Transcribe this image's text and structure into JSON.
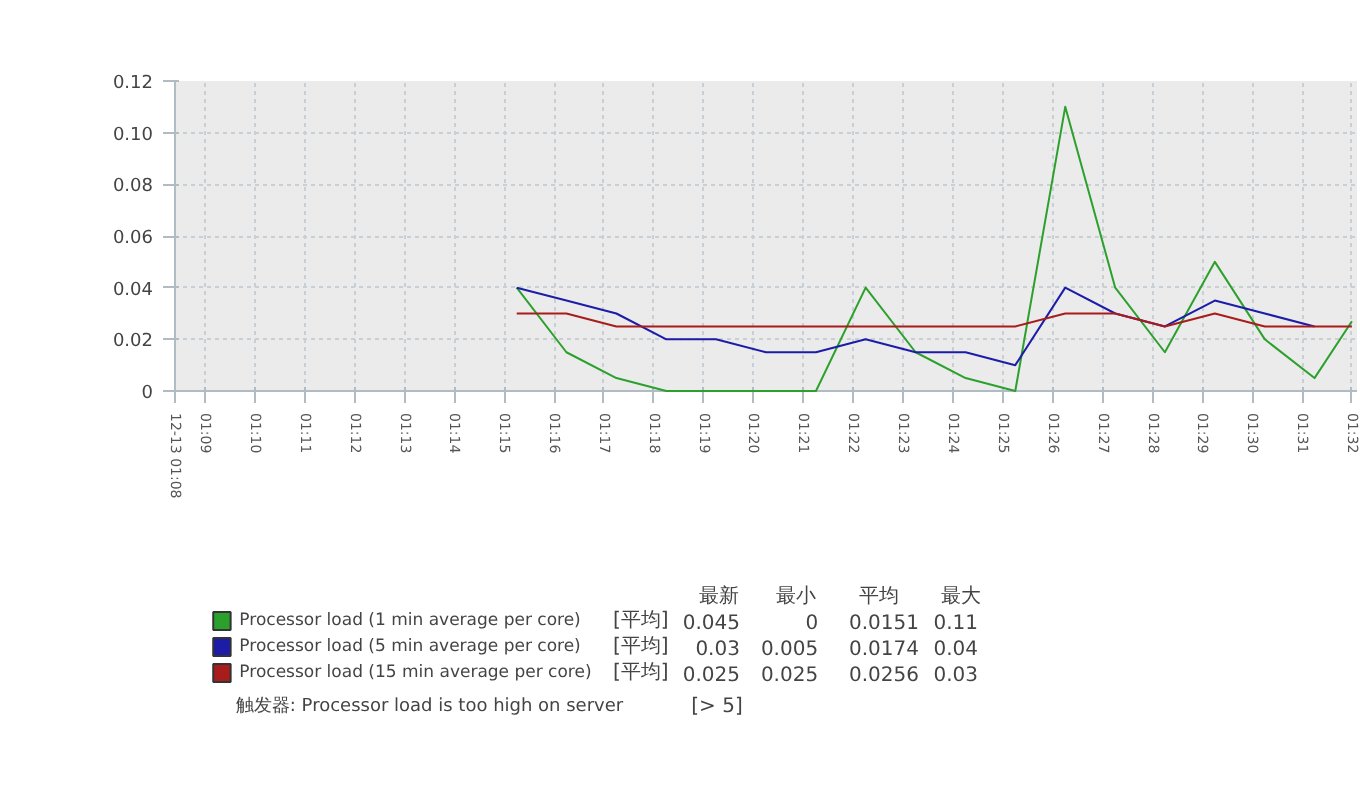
{
  "chart_data": {
    "type": "line",
    "legend": "bottom",
    "grid": true,
    "x": [
      1.2542,
      1.2708,
      1.2875,
      1.3042,
      1.3208,
      1.3375,
      1.3542,
      1.3708,
      1.3875,
      1.4042,
      1.4208,
      1.4375,
      1.4542,
      1.4708,
      1.4875,
      1.5042,
      1.5208,
      1.5333
    ],
    "series": [
      {
        "name": "Processor load (1 min average per core)",
        "color": "#2ca02c",
        "values": [
          0.04,
          0.015,
          0.005,
          0,
          0,
          0,
          0,
          0.04,
          0.015,
          0.005,
          0,
          0.11,
          0.04,
          0.015,
          0.05,
          0.02,
          0.005,
          0.027
        ]
      },
      {
        "name": "Processor load (5 min average per core)",
        "color": "#1c1ca8",
        "values": [
          0.04,
          0.035,
          0.03,
          0.02,
          0.02,
          0.015,
          0.015,
          0.02,
          0.015,
          0.015,
          0.01,
          0.04,
          0.03,
          0.025,
          0.035,
          0.03,
          0.025,
          null
        ]
      },
      {
        "name": "Processor load (15 min average per core)",
        "color": "#a81c1c",
        "values": [
          0.03,
          0.03,
          0.025,
          0.025,
          0.025,
          0.025,
          0.025,
          0.025,
          0.025,
          0.025,
          0.025,
          0.03,
          0.03,
          0.025,
          0.03,
          0.025,
          0.025,
          0.025
        ]
      }
    ],
    "xlim": [
      1.14,
      1.535
    ],
    "xticks": [
      {
        "value": 1.14,
        "label": "12-13 01:08"
      },
      {
        "value": 1.15,
        "label": "01:09"
      },
      {
        "value": 1.1667,
        "label": "01:10"
      },
      {
        "value": 1.1833,
        "label": "01:11"
      },
      {
        "value": 1.2,
        "label": "01:12"
      },
      {
        "value": 1.2167,
        "label": "01:13"
      },
      {
        "value": 1.2333,
        "label": "01:14"
      },
      {
        "value": 1.25,
        "label": "01:15"
      },
      {
        "value": 1.2667,
        "label": "01:16"
      },
      {
        "value": 1.2833,
        "label": "01:17"
      },
      {
        "value": 1.3,
        "label": "01:18"
      },
      {
        "value": 1.3167,
        "label": "01:19"
      },
      {
        "value": 1.3333,
        "label": "01:20"
      },
      {
        "value": 1.35,
        "label": "01:21"
      },
      {
        "value": 1.3667,
        "label": "01:22"
      },
      {
        "value": 1.3833,
        "label": "01:23"
      },
      {
        "value": 1.4,
        "label": "01:24"
      },
      {
        "value": 1.4167,
        "label": "01:25"
      },
      {
        "value": 1.4333,
        "label": "01:26"
      },
      {
        "value": 1.45,
        "label": "01:27"
      },
      {
        "value": 1.4667,
        "label": "01:28"
      },
      {
        "value": 1.4833,
        "label": "01:29"
      },
      {
        "value": 1.5,
        "label": "01:30"
      },
      {
        "value": 1.5167,
        "label": "01:31"
      },
      {
        "value": 1.5333,
        "label": "01:32"
      }
    ],
    "ylim": [
      0,
      0.12
    ],
    "yticks": [
      0,
      {
        "value": 0.02,
        "label": "0.02"
      },
      {
        "value": 0.04,
        "label": "0.04"
      },
      {
        "value": 0.06,
        "label": "0.06"
      },
      {
        "value": 0.08,
        "label": "0.08"
      },
      {
        "value": 0.1,
        "label": "0.10"
      },
      {
        "value": 0.12,
        "label": "0.12"
      }
    ],
    "annotations": [
      "最新",
      "最小",
      "平均",
      "最大",
      "[平均]",
      "0.045",
      "0",
      "0.0151",
      "0.11",
      "[平均]",
      "0.03",
      "0.005",
      "0.0174",
      "0.04",
      "[平均]",
      "0.025",
      "0.025",
      "0.0256",
      "0.03",
      "触发器: Processor load is too high on server",
      "[> 5]"
    ]
  }
}
